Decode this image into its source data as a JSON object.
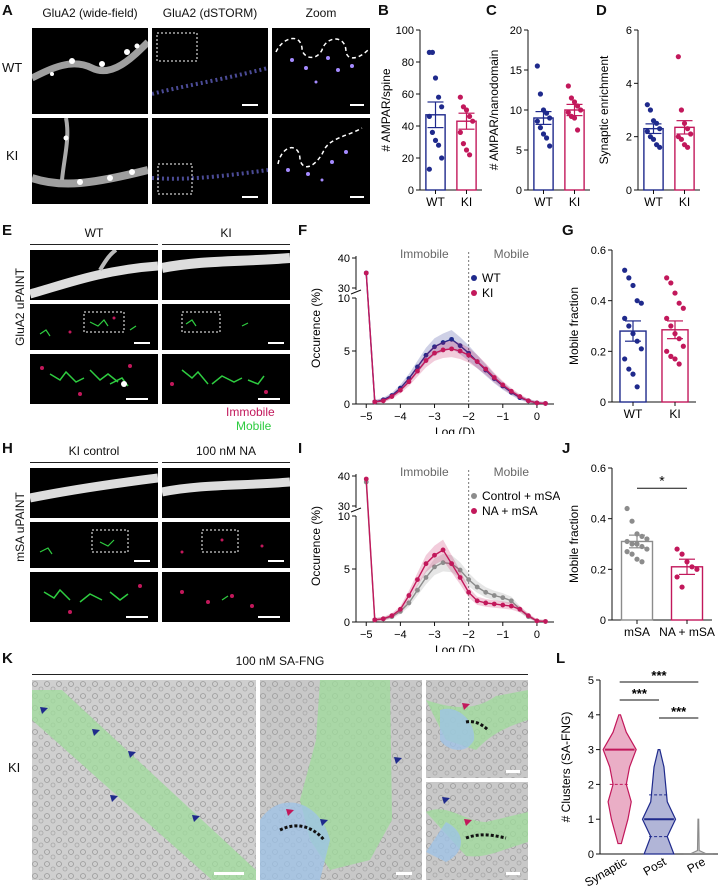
{
  "panel_letters": {
    "A": "A",
    "B": "B",
    "C": "C",
    "D": "D",
    "E": "E",
    "F": "F",
    "G": "G",
    "H": "H",
    "I": "I",
    "J": "J",
    "K": "K",
    "L": "L"
  },
  "panelA": {
    "col1": "GluA2 (wide-field)",
    "col2": "GluA2 (dSTORM)",
    "col3": "Zoom",
    "row1": "WT",
    "row2": "KI"
  },
  "panelE": {
    "col1": "WT",
    "col2": "KI",
    "side": "GluA2 uPAINT",
    "legend_immobile": "Immobile",
    "legend_mobile": "Mobile"
  },
  "panelH": {
    "col1": "KI control",
    "col2": "100 nM NA",
    "side": "mSA uPAINT"
  },
  "panelK": {
    "title": "100 nM SA-FNG",
    "side": "KI"
  },
  "colors": {
    "wt": "#1f2a8c",
    "ki": "#c2185b",
    "control": "#8c8c8c",
    "em_green": "#9fdc9b",
    "em_blue": "#9ec3e8",
    "immobile": "#c2185b",
    "mobile": "#2ecc40"
  },
  "chart_data": [
    {
      "id": "B",
      "type": "bar",
      "categories": [
        "WT",
        "KI"
      ],
      "values": [
        47,
        43
      ],
      "sem": [
        8,
        5
      ],
      "ylabel": "# AMPAR/spine",
      "ylim": [
        0,
        100
      ],
      "yticks": [
        0,
        20,
        40,
        60,
        80,
        100
      ],
      "points": [
        [
          86,
          86,
          70,
          58,
          52,
          46,
          36,
          31,
          28,
          20,
          13
        ],
        [
          58,
          52,
          50,
          46,
          43,
          36,
          29,
          25,
          22
        ]
      ]
    },
    {
      "id": "C",
      "type": "bar",
      "categories": [
        "WT",
        "KI"
      ],
      "values": [
        9.0,
        10.0
      ],
      "sem": [
        0.8,
        0.7
      ],
      "ylabel": "# AMPAR/nanodomain",
      "ylim": [
        0,
        20
      ],
      "yticks": [
        0,
        5,
        10,
        15,
        20
      ],
      "points": [
        [
          15.5,
          12,
          10,
          9.6,
          9,
          8.6,
          7.8,
          7,
          6.5,
          5.5
        ],
        [
          13,
          11.5,
          11,
          10.5,
          10,
          9.7,
          9.2,
          9,
          7.5
        ]
      ]
    },
    {
      "id": "D",
      "type": "bar",
      "categories": [
        "WT",
        "KI"
      ],
      "values": [
        2.3,
        2.35
      ],
      "sem": [
        0.18,
        0.25
      ],
      "ylabel": "Synaptic enrichment",
      "ylim": [
        0,
        6
      ],
      "yticks": [
        0,
        2,
        4,
        6
      ],
      "points": [
        [
          3.2,
          3.0,
          2.6,
          2.5,
          2.3,
          2.2,
          2.0,
          1.9,
          1.7,
          1.6
        ],
        [
          5.0,
          3.0,
          2.5,
          2.3,
          2.1,
          2.0,
          1.9,
          1.7,
          1.6
        ]
      ]
    },
    {
      "id": "F",
      "type": "line",
      "xlabel": "Log (D)",
      "ylabel": "Occurence (%)",
      "xlim": [
        -5.3,
        0.5
      ],
      "xticks": [
        -5,
        -4,
        -3,
        -2,
        -1,
        0
      ],
      "yticks_low": [
        0,
        5,
        10
      ],
      "yticks_high": [
        30,
        40
      ],
      "region_left": "Immobile",
      "region_right": "Mobile",
      "divider_x": -2,
      "series": [
        {
          "name": "WT",
          "x": [
            -5,
            -4.75,
            -4.5,
            -4.25,
            -4,
            -3.75,
            -3.5,
            -3.25,
            -3,
            -2.75,
            -2.5,
            -2.25,
            -2,
            -1.75,
            -1.5,
            -1.25,
            -1,
            -0.75,
            -0.5,
            -0.25,
            0,
            0.25
          ],
          "y": [
            35,
            0.2,
            0.4,
            0.8,
            1.5,
            2.4,
            3.5,
            4.6,
            5.4,
            5.8,
            6.1,
            5.5,
            4.8,
            4.0,
            3.2,
            2.4,
            1.7,
            1.1,
            0.6,
            0.3,
            0.1,
            0.05
          ]
        },
        {
          "name": "KI",
          "x": [
            -5,
            -4.75,
            -4.5,
            -4.25,
            -4,
            -3.75,
            -3.5,
            -3.25,
            -3,
            -2.75,
            -2.5,
            -2.25,
            -2,
            -1.75,
            -1.5,
            -1.25,
            -1,
            -0.75,
            -0.5,
            -0.25,
            0,
            0.25
          ],
          "y": [
            35,
            0.2,
            0.3,
            0.7,
            1.3,
            2.1,
            3.1,
            4.1,
            4.8,
            5.1,
            5.2,
            5.0,
            4.6,
            4.0,
            3.3,
            2.5,
            1.8,
            1.2,
            0.7,
            0.3,
            0.1,
            0.05
          ]
        }
      ]
    },
    {
      "id": "G",
      "type": "bar",
      "categories": [
        "WT",
        "KI"
      ],
      "values": [
        0.28,
        0.285
      ],
      "sem": [
        0.04,
        0.035
      ],
      "ylabel": "Mobile fraction",
      "ylim": [
        0,
        0.6
      ],
      "yticks": [
        0,
        0.2,
        0.4,
        0.6
      ],
      "points": [
        [
          0.52,
          0.49,
          0.46,
          0.4,
          0.39,
          0.33,
          0.3,
          0.27,
          0.24,
          0.21,
          0.17,
          0.13,
          0.11,
          0.06
        ],
        [
          0.49,
          0.47,
          0.43,
          0.39,
          0.37,
          0.33,
          0.3,
          0.27,
          0.25,
          0.22,
          0.2,
          0.18,
          0.17,
          0.15
        ]
      ]
    },
    {
      "id": "I",
      "type": "line",
      "xlabel": "Log (D)",
      "ylabel": "Occurence (%)",
      "xlim": [
        -5.3,
        0.5
      ],
      "xticks": [
        -5,
        -4,
        -3,
        -2,
        -1,
        0
      ],
      "yticks_low": [
        0,
        5,
        10
      ],
      "yticks_high": [
        30,
        40
      ],
      "region_left": "Immobile",
      "region_right": "Mobile",
      "divider_x": -2,
      "series": [
        {
          "name": "Control + mSA",
          "x": [
            -5,
            -4.75,
            -4.5,
            -4.25,
            -4,
            -3.75,
            -3.5,
            -3.25,
            -3,
            -2.75,
            -2.5,
            -2.25,
            -2,
            -1.75,
            -1.5,
            -1.25,
            -1,
            -0.75,
            -0.5,
            -0.25,
            0,
            0.25
          ],
          "y": [
            38,
            0.2,
            0.3,
            0.5,
            1.0,
            1.8,
            3.0,
            4.2,
            5.2,
            5.6,
            5.5,
            4.9,
            4.0,
            3.3,
            2.8,
            2.5,
            2.3,
            2.0,
            1.2,
            0.5,
            0.1,
            0.05
          ]
        },
        {
          "name": "NA + mSA",
          "x": [
            -5,
            -4.75,
            -4.5,
            -4.25,
            -4,
            -3.75,
            -3.5,
            -3.25,
            -3,
            -2.75,
            -2.5,
            -2.25,
            -2,
            -1.75,
            -1.5,
            -1.25,
            -1,
            -0.75,
            -0.5,
            -0.25,
            0,
            0.25
          ],
          "y": [
            39,
            0.2,
            0.3,
            0.6,
            1.2,
            2.5,
            4.0,
            5.5,
            6.3,
            6.8,
            5.5,
            4.2,
            2.8,
            2.0,
            1.8,
            1.7,
            1.6,
            1.5,
            1.2,
            0.6,
            0.1,
            0.05
          ]
        }
      ]
    },
    {
      "id": "J",
      "type": "bar",
      "categories": [
        "mSA",
        "NA + mSA"
      ],
      "values": [
        0.31,
        0.21
      ],
      "sem": [
        0.025,
        0.03
      ],
      "ylabel": "Mobile fraction",
      "ylim": [
        0,
        0.6
      ],
      "yticks": [
        0,
        0.2,
        0.4,
        0.6
      ],
      "significance": "*",
      "points": [
        [
          0.44,
          0.39,
          0.34,
          0.33,
          0.32,
          0.31,
          0.3,
          0.3,
          0.29,
          0.28,
          0.27,
          0.26,
          0.24,
          0.23
        ],
        [
          0.28,
          0.26,
          0.23,
          0.21,
          0.2,
          0.17,
          0.13
        ]
      ]
    },
    {
      "id": "L",
      "type": "violin",
      "categories": [
        "Synaptic",
        "Post",
        "Pre"
      ],
      "ylabel": "# Clusters (SA-FNG)",
      "ylim": [
        0,
        5
      ],
      "yticks": [
        0,
        1,
        2,
        3,
        4,
        5
      ],
      "medians": [
        3,
        1,
        0
      ],
      "quartiles": [
        [
          2,
          3
        ],
        [
          0.5,
          1.7
        ],
        [
          0,
          0
        ]
      ],
      "ranges": [
        [
          0.3,
          4
        ],
        [
          0,
          3
        ],
        [
          0,
          1
        ]
      ],
      "significance": [
        "***",
        "***",
        "***"
      ]
    }
  ]
}
